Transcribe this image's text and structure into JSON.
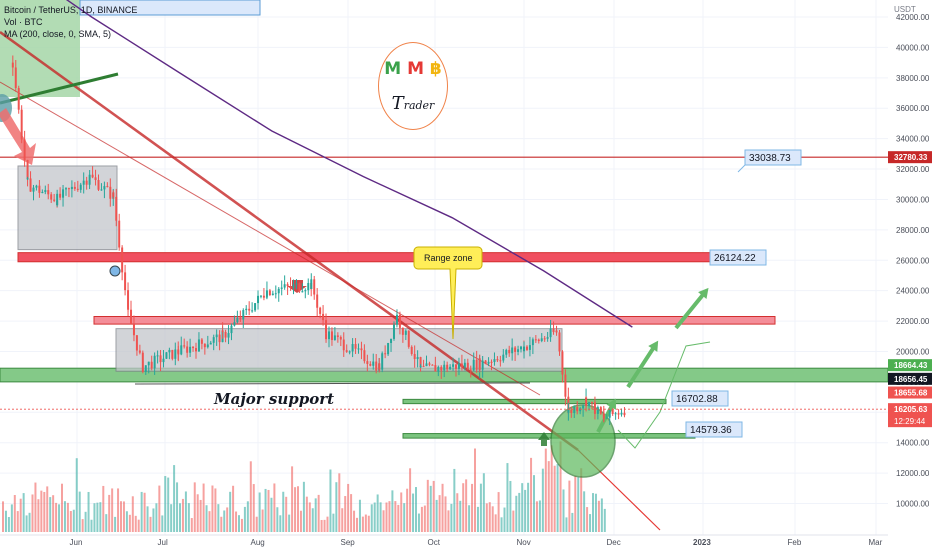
{
  "legend": {
    "symbol": "Bitcoin / TetherUS, 1D, BINANCE",
    "volume": "Vol · BTC",
    "ma": "MA (200, close, 0, SMA, 5)"
  },
  "logo": {
    "letters": [
      "M",
      "M",
      "฿"
    ],
    "sub_first": "T",
    "sub_rest": "rader"
  },
  "colors": {
    "up": "#26a69a",
    "down": "#ef5350",
    "resistance_fill": "#f05060",
    "support_fill": "#6fbf73",
    "ma": "#5e2a84",
    "label_bg": "#dbe8fb",
    "label_border": "#7fb7e6",
    "range_zone_bg": "#ffee58"
  },
  "chart_data": {
    "type": "candlestick",
    "title": "Bitcoin / TetherUS, 1D, BINANCE",
    "y_axis": {
      "unit": "USDT",
      "scale": "linear",
      "range": [
        9000,
        44000
      ],
      "ticks": [
        10000,
        12000,
        14000,
        16000,
        18000,
        20000,
        22000,
        24000,
        26000,
        28000,
        30000,
        32000,
        34000,
        36000,
        38000,
        40000,
        42000
      ]
    },
    "x_axis": {
      "labels": [
        "Jun",
        "Jul",
        "Aug",
        "Sep",
        "Oct",
        "Nov",
        "Dec",
        "2023",
        "Feb",
        "Mar"
      ]
    },
    "price_path": [
      {
        "date": "2022-05-05",
        "price": 39000
      },
      {
        "date": "2022-05-10",
        "price": 31000
      },
      {
        "date": "2022-05-20",
        "price": 30000
      },
      {
        "date": "2022-05-31",
        "price": 31500
      },
      {
        "date": "2022-06-08",
        "price": 30200
      },
      {
        "date": "2022-06-13",
        "price": 22500
      },
      {
        "date": "2022-06-18",
        "price": 19000
      },
      {
        "date": "2022-06-30",
        "price": 20000
      },
      {
        "date": "2022-07-15",
        "price": 21000
      },
      {
        "date": "2022-07-30",
        "price": 24000
      },
      {
        "date": "2022-08-14",
        "price": 24400
      },
      {
        "date": "2022-08-19",
        "price": 21200
      },
      {
        "date": "2022-09-06",
        "price": 19000
      },
      {
        "date": "2022-09-12",
        "price": 22300
      },
      {
        "date": "2022-09-20",
        "price": 18800
      },
      {
        "date": "2022-10-10",
        "price": 19200
      },
      {
        "date": "2022-10-25",
        "price": 20300
      },
      {
        "date": "2022-11-05",
        "price": 21300
      },
      {
        "date": "2022-11-09",
        "price": 16000
      },
      {
        "date": "2022-11-15",
        "price": 16800
      },
      {
        "date": "2022-11-21",
        "price": 15600
      },
      {
        "date": "2022-11-28",
        "price": 16205.63
      }
    ],
    "ma200_path": [
      {
        "date": "2022-04-25",
        "price": 47000
      },
      {
        "date": "2022-06-01",
        "price": 42000
      },
      {
        "date": "2022-07-01",
        "price": 38300
      },
      {
        "date": "2022-08-01",
        "price": 34500
      },
      {
        "date": "2022-09-01",
        "price": 31500
      },
      {
        "date": "2022-10-01",
        "price": 28800
      },
      {
        "date": "2022-11-01",
        "price": 25300
      },
      {
        "date": "2022-12-01",
        "price": 21600
      }
    ],
    "horizontal_levels": [
      {
        "price": 32780.33,
        "label": "32780.33"
      },
      {
        "price": 33038.73,
        "label": "33038.73"
      },
      {
        "price": 26124.22,
        "label": "26124.22"
      },
      {
        "price": 16702.88,
        "label": "16702.88"
      },
      {
        "price": 14579.36,
        "label": "14579.36"
      }
    ],
    "zones": [
      {
        "name": "resistance",
        "from": 25900,
        "to": 26500
      },
      {
        "name": "resistance",
        "from": 21800,
        "to": 22300
      },
      {
        "name": "major support",
        "from": 18000,
        "to": 18900
      }
    ],
    "price_scale_labels": [
      {
        "price": 18664.43,
        "label": "18664.43"
      },
      {
        "price": 18656.45,
        "label": "18656.45"
      },
      {
        "price": 18655.68,
        "label": "18655.68"
      },
      {
        "price": 16205.63,
        "label": "16205.63",
        "countdown": "12:29:44"
      }
    ],
    "annotations": [
      "Range zone",
      "Major support"
    ]
  }
}
